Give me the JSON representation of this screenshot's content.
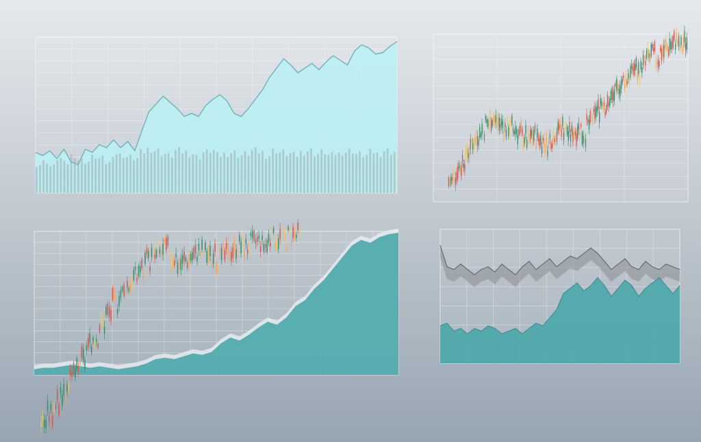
{
  "colors": {
    "up": "#3a8c6e",
    "down": "#d9574a",
    "neutral": "#e9c46a",
    "area_light": "#b8f1f4",
    "area_line": "#6fb3ba",
    "area_teal": "#4aa7aa",
    "area_gray": "#8d8e92",
    "grid": "#ffffff"
  },
  "chart_data": [
    {
      "id": "top-left",
      "type": "area",
      "title": "",
      "xlabel": "",
      "ylabel": "",
      "ylim": [
        0,
        100
      ],
      "grid": true,
      "series": [
        {
          "values": [
            26,
            24,
            27,
            22,
            28,
            20,
            18,
            28,
            26,
            31,
            29,
            34,
            29,
            33,
            27,
            40,
            52,
            57,
            62,
            58,
            54,
            49,
            51,
            49,
            56,
            60,
            63,
            59,
            51,
            49,
            54,
            60,
            66,
            74,
            80,
            86,
            82,
            77,
            80,
            83,
            79,
            84,
            88,
            85,
            82,
            91,
            95,
            93,
            89,
            90,
            94,
            97
          ]
        },
        {
          "values": [
            18,
            20,
            17,
            22,
            19,
            24,
            21,
            20,
            23,
            22,
            19,
            25,
            24,
            23,
            22,
            26,
            28,
            27,
            25,
            24,
            27,
            26,
            25,
            23,
            26,
            27,
            24,
            25,
            26,
            24,
            25,
            27,
            26,
            24,
            27,
            26,
            25,
            24,
            26,
            27,
            25,
            26,
            24,
            25,
            26,
            27,
            25,
            24,
            26,
            25,
            27,
            26
          ]
        }
      ]
    },
    {
      "id": "top-right",
      "type": "candlestick",
      "title": "",
      "xlabel": "",
      "ylabel": "",
      "ylim": [
        0,
        100
      ],
      "grid": true,
      "series": [
        {
          "values": [
            12,
            16,
            21,
            25,
            30,
            36,
            40,
            43,
            47,
            50,
            48,
            46,
            44,
            45,
            43,
            41,
            39,
            37,
            40,
            38,
            36,
            34,
            38,
            41,
            45,
            43,
            40,
            42,
            44,
            40,
            46,
            50,
            55,
            60,
            57,
            62,
            65,
            70,
            73,
            76,
            80,
            78,
            82,
            86,
            88,
            85,
            90,
            92,
            94,
            96,
            92,
            95
          ]
        }
      ]
    },
    {
      "id": "bottom-left",
      "type": "candlestick",
      "title": "",
      "xlabel": "",
      "ylabel": "",
      "ylim": [
        0,
        100
      ],
      "grid": true,
      "series": [
        {
          "values": [
            5,
            9,
            14,
            20,
            25,
            30,
            36,
            42,
            48,
            54,
            60,
            65,
            70,
            74,
            78,
            82,
            86,
            88,
            90,
            92,
            88,
            85,
            87,
            89,
            91,
            90,
            88,
            86,
            89,
            92,
            94,
            93,
            95,
            96,
            94,
            97,
            98,
            97,
            99,
            99
          ]
        },
        {
          "values": [
            4,
            5,
            5,
            6,
            7,
            6,
            5,
            6,
            5,
            4,
            5,
            6,
            8,
            11,
            12,
            11,
            13,
            15,
            14,
            16,
            22,
            26,
            24,
            28,
            33,
            37,
            35,
            40,
            48,
            52,
            60,
            66,
            74,
            82,
            90,
            94,
            92,
            96,
            98,
            99
          ]
        }
      ]
    },
    {
      "id": "bottom-right",
      "type": "area",
      "title": "",
      "xlabel": "",
      "ylabel": "",
      "ylim": [
        0,
        100
      ],
      "grid": true,
      "series": [
        {
          "values": [
            88,
            72,
            70,
            74,
            70,
            66,
            70,
            72,
            68,
            74,
            70,
            66,
            72,
            76,
            70,
            74,
            78,
            72,
            76,
            80,
            78,
            82,
            86,
            82,
            76,
            70,
            74,
            78,
            72,
            70,
            76,
            72,
            70,
            74,
            72,
            70
          ]
        },
        {
          "values": [
            28,
            30,
            24,
            26,
            22,
            26,
            24,
            28,
            26,
            22,
            24,
            26,
            22,
            26,
            30,
            28,
            34,
            40,
            52,
            56,
            60,
            54,
            58,
            64,
            58,
            50,
            56,
            62,
            58,
            50,
            56,
            60,
            64,
            58,
            52,
            58
          ]
        }
      ]
    }
  ],
  "charts": [
    {
      "yticks": [
        "",
        "",
        "",
        "",
        "",
        "",
        "",
        "",
        "",
        "",
        "",
        "",
        "",
        ""
      ],
      "xticks": [
        "",
        "",
        "",
        "",
        "",
        "",
        "",
        "",
        "",
        "",
        ""
      ]
    },
    {
      "yticks": [
        "",
        "",
        "",
        "",
        "",
        "",
        "",
        "",
        "",
        "",
        "",
        "",
        "",
        ""
      ],
      "xticks": [
        "",
        "",
        "",
        "",
        ""
      ]
    },
    {
      "yticks": [
        "",
        "",
        "",
        "",
        "",
        "",
        "",
        "",
        "",
        "",
        "",
        "",
        "",
        ""
      ],
      "xticks": [
        "",
        "",
        "",
        "",
        "",
        "",
        "",
        "",
        "",
        "",
        "",
        "",
        "",
        "",
        ""
      ]
    },
    {
      "yticks": [
        "",
        "",
        "",
        "",
        "",
        "",
        "",
        ""
      ],
      "xticks": [
        "",
        "",
        "",
        "",
        "",
        "",
        "",
        "",
        "",
        ""
      ]
    }
  ]
}
